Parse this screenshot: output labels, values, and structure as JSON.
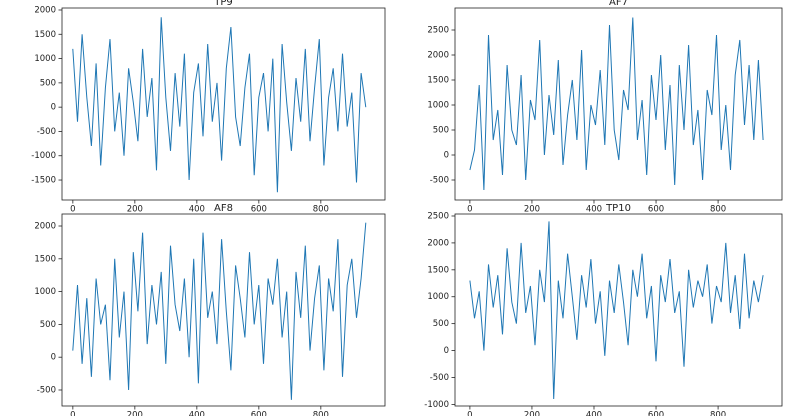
{
  "chart_data": [
    {
      "type": "line",
      "title": "TP9",
      "color": "#1f77b4",
      "x": [
        0,
        15,
        30,
        45,
        60,
        75,
        90,
        105,
        120,
        135,
        150,
        165,
        180,
        195,
        210,
        225,
        240,
        255,
        270,
        285,
        300,
        315,
        330,
        345,
        360,
        375,
        390,
        405,
        420,
        435,
        450,
        465,
        480,
        495,
        510,
        525,
        540,
        555,
        570,
        585,
        600,
        615,
        630,
        645,
        660,
        675,
        690,
        705,
        720,
        735,
        750,
        765,
        780,
        795,
        810,
        825,
        840,
        855,
        870,
        885,
        900,
        915,
        930,
        945
      ],
      "values": [
        1200,
        -300,
        1500,
        200,
        -800,
        900,
        -1200,
        400,
        1400,
        -500,
        300,
        -1000,
        800,
        100,
        -700,
        1200,
        -200,
        600,
        -1300,
        1850,
        200,
        -900,
        700,
        -400,
        1100,
        -1500,
        300,
        900,
        -600,
        1300,
        -300,
        500,
        -1100,
        800,
        1650,
        -200,
        -800,
        400,
        1100,
        -1400,
        200,
        700,
        -500,
        1000,
        -1750,
        1300,
        100,
        -900,
        600,
        -300,
        1200,
        -700,
        400,
        1400,
        -1200,
        200,
        800,
        -500,
        1100,
        -400,
        300,
        -1550,
        700,
        0
      ],
      "xlim": [
        -35,
        1007
      ],
      "xticks": [
        0,
        200,
        400,
        600,
        800
      ],
      "ylim": [
        -1911,
        2041
      ],
      "yticks": [
        -1500,
        -1000,
        -500,
        0,
        500,
        1000,
        1500,
        2000
      ]
    },
    {
      "type": "line",
      "title": "AF7",
      "color": "#1f77b4",
      "x": [
        0,
        15,
        30,
        45,
        60,
        75,
        90,
        105,
        120,
        135,
        150,
        165,
        180,
        195,
        210,
        225,
        240,
        255,
        270,
        285,
        300,
        315,
        330,
        345,
        360,
        375,
        390,
        405,
        420,
        435,
        450,
        465,
        480,
        495,
        510,
        525,
        540,
        555,
        570,
        585,
        600,
        615,
        630,
        645,
        660,
        675,
        690,
        705,
        720,
        735,
        750,
        765,
        780,
        795,
        810,
        825,
        840,
        855,
        870,
        885,
        900,
        915,
        930,
        945
      ],
      "values": [
        -300,
        100,
        1400,
        -700,
        2400,
        300,
        900,
        -400,
        1800,
        500,
        200,
        1600,
        -500,
        1100,
        700,
        2300,
        0,
        1200,
        400,
        1900,
        -200,
        800,
        1500,
        300,
        2100,
        -300,
        1000,
        600,
        1700,
        200,
        2600,
        500,
        -100,
        1300,
        900,
        2750,
        300,
        1100,
        -400,
        1600,
        700,
        2000,
        100,
        1400,
        -600,
        1800,
        500,
        2200,
        200,
        900,
        -500,
        1300,
        800,
        2400,
        100,
        1000,
        -300,
        1600,
        2300,
        600,
        1800,
        300,
        1900,
        300
      ],
      "xlim": [
        -48,
        1006
      ],
      "xticks": [
        0,
        200,
        400,
        600,
        800
      ],
      "ylim": [
        -900,
        2940
      ],
      "yticks": [
        -500,
        0,
        500,
        1000,
        1500,
        2000,
        2500
      ]
    },
    {
      "type": "line",
      "title": "AF8",
      "color": "#1f77b4",
      "x": [
        0,
        15,
        30,
        45,
        60,
        75,
        90,
        105,
        120,
        135,
        150,
        165,
        180,
        195,
        210,
        225,
        240,
        255,
        270,
        285,
        300,
        315,
        330,
        345,
        360,
        375,
        390,
        405,
        420,
        435,
        450,
        465,
        480,
        495,
        510,
        525,
        540,
        555,
        570,
        585,
        600,
        615,
        630,
        645,
        660,
        675,
        690,
        705,
        720,
        735,
        750,
        765,
        780,
        795,
        810,
        825,
        840,
        855,
        870,
        885,
        900,
        915,
        930,
        945
      ],
      "values": [
        100,
        1100,
        -100,
        900,
        -300,
        1200,
        500,
        800,
        -350,
        1500,
        300,
        1000,
        -500,
        1600,
        700,
        1900,
        200,
        1100,
        500,
        1300,
        -100,
        1700,
        800,
        400,
        1200,
        0,
        1500,
        -400,
        1900,
        600,
        1000,
        200,
        1800,
        700,
        -200,
        1400,
        900,
        300,
        1600,
        500,
        1100,
        -100,
        1200,
        800,
        1500,
        300,
        1000,
        -650,
        1300,
        600,
        1700,
        100,
        900,
        1400,
        -200,
        1200,
        700,
        1800,
        -300,
        1100,
        1500,
        600,
        1200,
        2050
      ],
      "xlim": [
        -35,
        1007
      ],
      "xticks": [
        0,
        200,
        400,
        600,
        800
      ],
      "ylim": [
        -744,
        2183
      ],
      "yticks": [
        -500,
        0,
        500,
        1000,
        1500,
        2000
      ]
    },
    {
      "type": "line",
      "title": "TP10",
      "color": "#1f77b4",
      "x": [
        0,
        15,
        30,
        45,
        60,
        75,
        90,
        105,
        120,
        135,
        150,
        165,
        180,
        195,
        210,
        225,
        240,
        255,
        270,
        285,
        300,
        315,
        330,
        345,
        360,
        375,
        390,
        405,
        420,
        435,
        450,
        465,
        480,
        495,
        510,
        525,
        540,
        555,
        570,
        585,
        600,
        615,
        630,
        645,
        660,
        675,
        690,
        705,
        720,
        735,
        750,
        765,
        780,
        795,
        810,
        825,
        840,
        855,
        870,
        885,
        900,
        915,
        930,
        945
      ],
      "values": [
        1300,
        600,
        1100,
        0,
        1600,
        800,
        1400,
        300,
        1900,
        900,
        500,
        2000,
        700,
        1200,
        100,
        1500,
        900,
        2400,
        -900,
        1300,
        600,
        1800,
        1000,
        200,
        1400,
        800,
        1700,
        500,
        1100,
        -100,
        1300,
        700,
        1600,
        900,
        100,
        1500,
        1000,
        1800,
        600,
        1200,
        -200,
        1400,
        900,
        1700,
        700,
        1100,
        -300,
        1500,
        800,
        1300,
        1000,
        1600,
        500,
        1200,
        900,
        2000,
        700,
        1400,
        400,
        1800,
        600,
        1300,
        900,
        1400
      ],
      "xlim": [
        -48,
        1006
      ],
      "xticks": [
        0,
        200,
        400,
        600,
        800
      ],
      "ylim": [
        -1030,
        2537
      ],
      "yticks": [
        -1000,
        -500,
        0,
        500,
        1000,
        1500,
        2000,
        2500
      ]
    }
  ]
}
